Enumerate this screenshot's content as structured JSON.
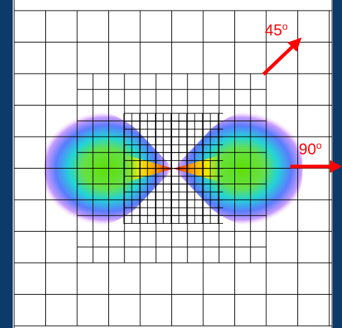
{
  "arrows": [
    {
      "angle": "45",
      "degree": "o"
    },
    {
      "angle": "90",
      "degree": "o"
    }
  ]
}
